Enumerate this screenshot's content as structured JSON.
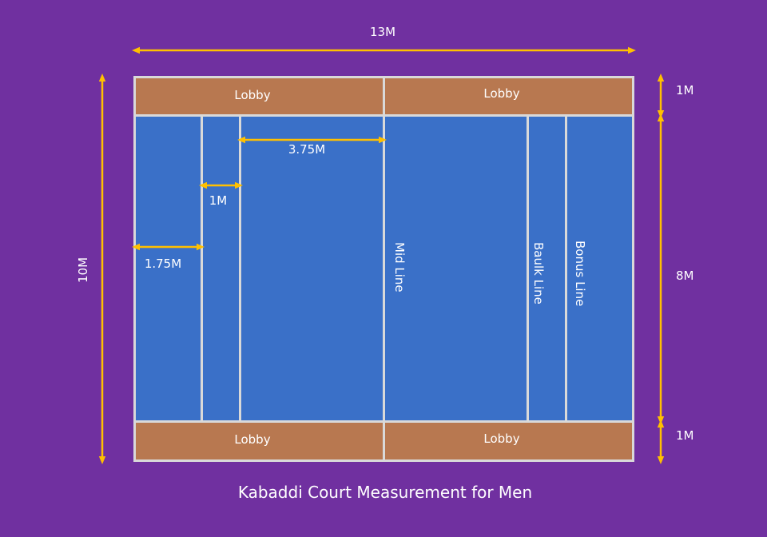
{
  "title": "Kabaddi Court Measurement for Men",
  "colors": {
    "background": "#7030a0",
    "court": "#3a70c8",
    "lobby": "#b87850",
    "lines": "#d9d9d9",
    "arrows": "#ffc000"
  },
  "lobbies": {
    "top_left": "Lobby",
    "top_right": "Lobby",
    "bottom_left": "Lobby",
    "bottom_right": "Lobby"
  },
  "lines": {
    "mid": "Mid Line",
    "baulk": "Baulk Line",
    "bonus": "Bonus Line"
  },
  "dimensions": {
    "total_width": "13M",
    "total_height": "10M",
    "lobby_top": "1M",
    "play_area": "8M",
    "lobby_bottom": "1M",
    "end_zone": "1.75M",
    "lane": "1M",
    "midline_to_baulk": "3.75M"
  }
}
